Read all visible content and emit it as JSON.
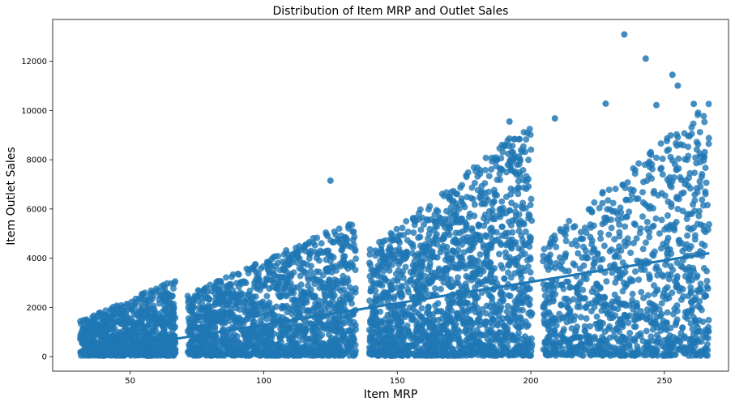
{
  "chart_data": {
    "type": "scatter",
    "title": "Distribution of Item MRP and  Outlet Sales",
    "xlabel": "Item MRP",
    "ylabel": "Item Outlet Sales",
    "xlim": [
      21,
      274
    ],
    "ylim": [
      -590,
      13700
    ],
    "x_ticks": [
      50,
      100,
      150,
      200,
      250
    ],
    "y_ticks": [
      0,
      2000,
      4000,
      6000,
      8000,
      10000,
      12000
    ],
    "grid": false,
    "legend": "none",
    "colors": {
      "points": "#1f77b4",
      "axes": "#000000"
    },
    "clusters": [
      {
        "x_range": [
          31.3,
          67.0
        ],
        "y_range": [
          40,
          3150
        ],
        "count": 900
      },
      {
        "x_range": [
          71.5,
          134.5
        ],
        "y_range": [
          40,
          5600
        ],
        "count": 1500
      },
      {
        "x_range": [
          139.5,
          200.5
        ],
        "y_range": [
          40,
          9600
        ],
        "count": 1700
      },
      {
        "x_range": [
          204.5,
          266.8
        ],
        "y_range": [
          40,
          10300
        ],
        "count": 1100
      }
    ],
    "regression_line": {
      "x": [
        31.3,
        266.8
      ],
      "y": [
        100,
        4200
      ],
      "label": ""
    },
    "notable_points": [
      {
        "x": 235,
        "y": 13090
      },
      {
        "x": 243,
        "y": 12110
      },
      {
        "x": 253,
        "y": 11450
      },
      {
        "x": 255,
        "y": 11010
      },
      {
        "x": 228,
        "y": 10280
      },
      {
        "x": 247,
        "y": 10220
      },
      {
        "x": 261,
        "y": 10270
      },
      {
        "x": 125,
        "y": 7150
      },
      {
        "x": 192,
        "y": 9550
      },
      {
        "x": 209,
        "y": 9680
      }
    ]
  }
}
